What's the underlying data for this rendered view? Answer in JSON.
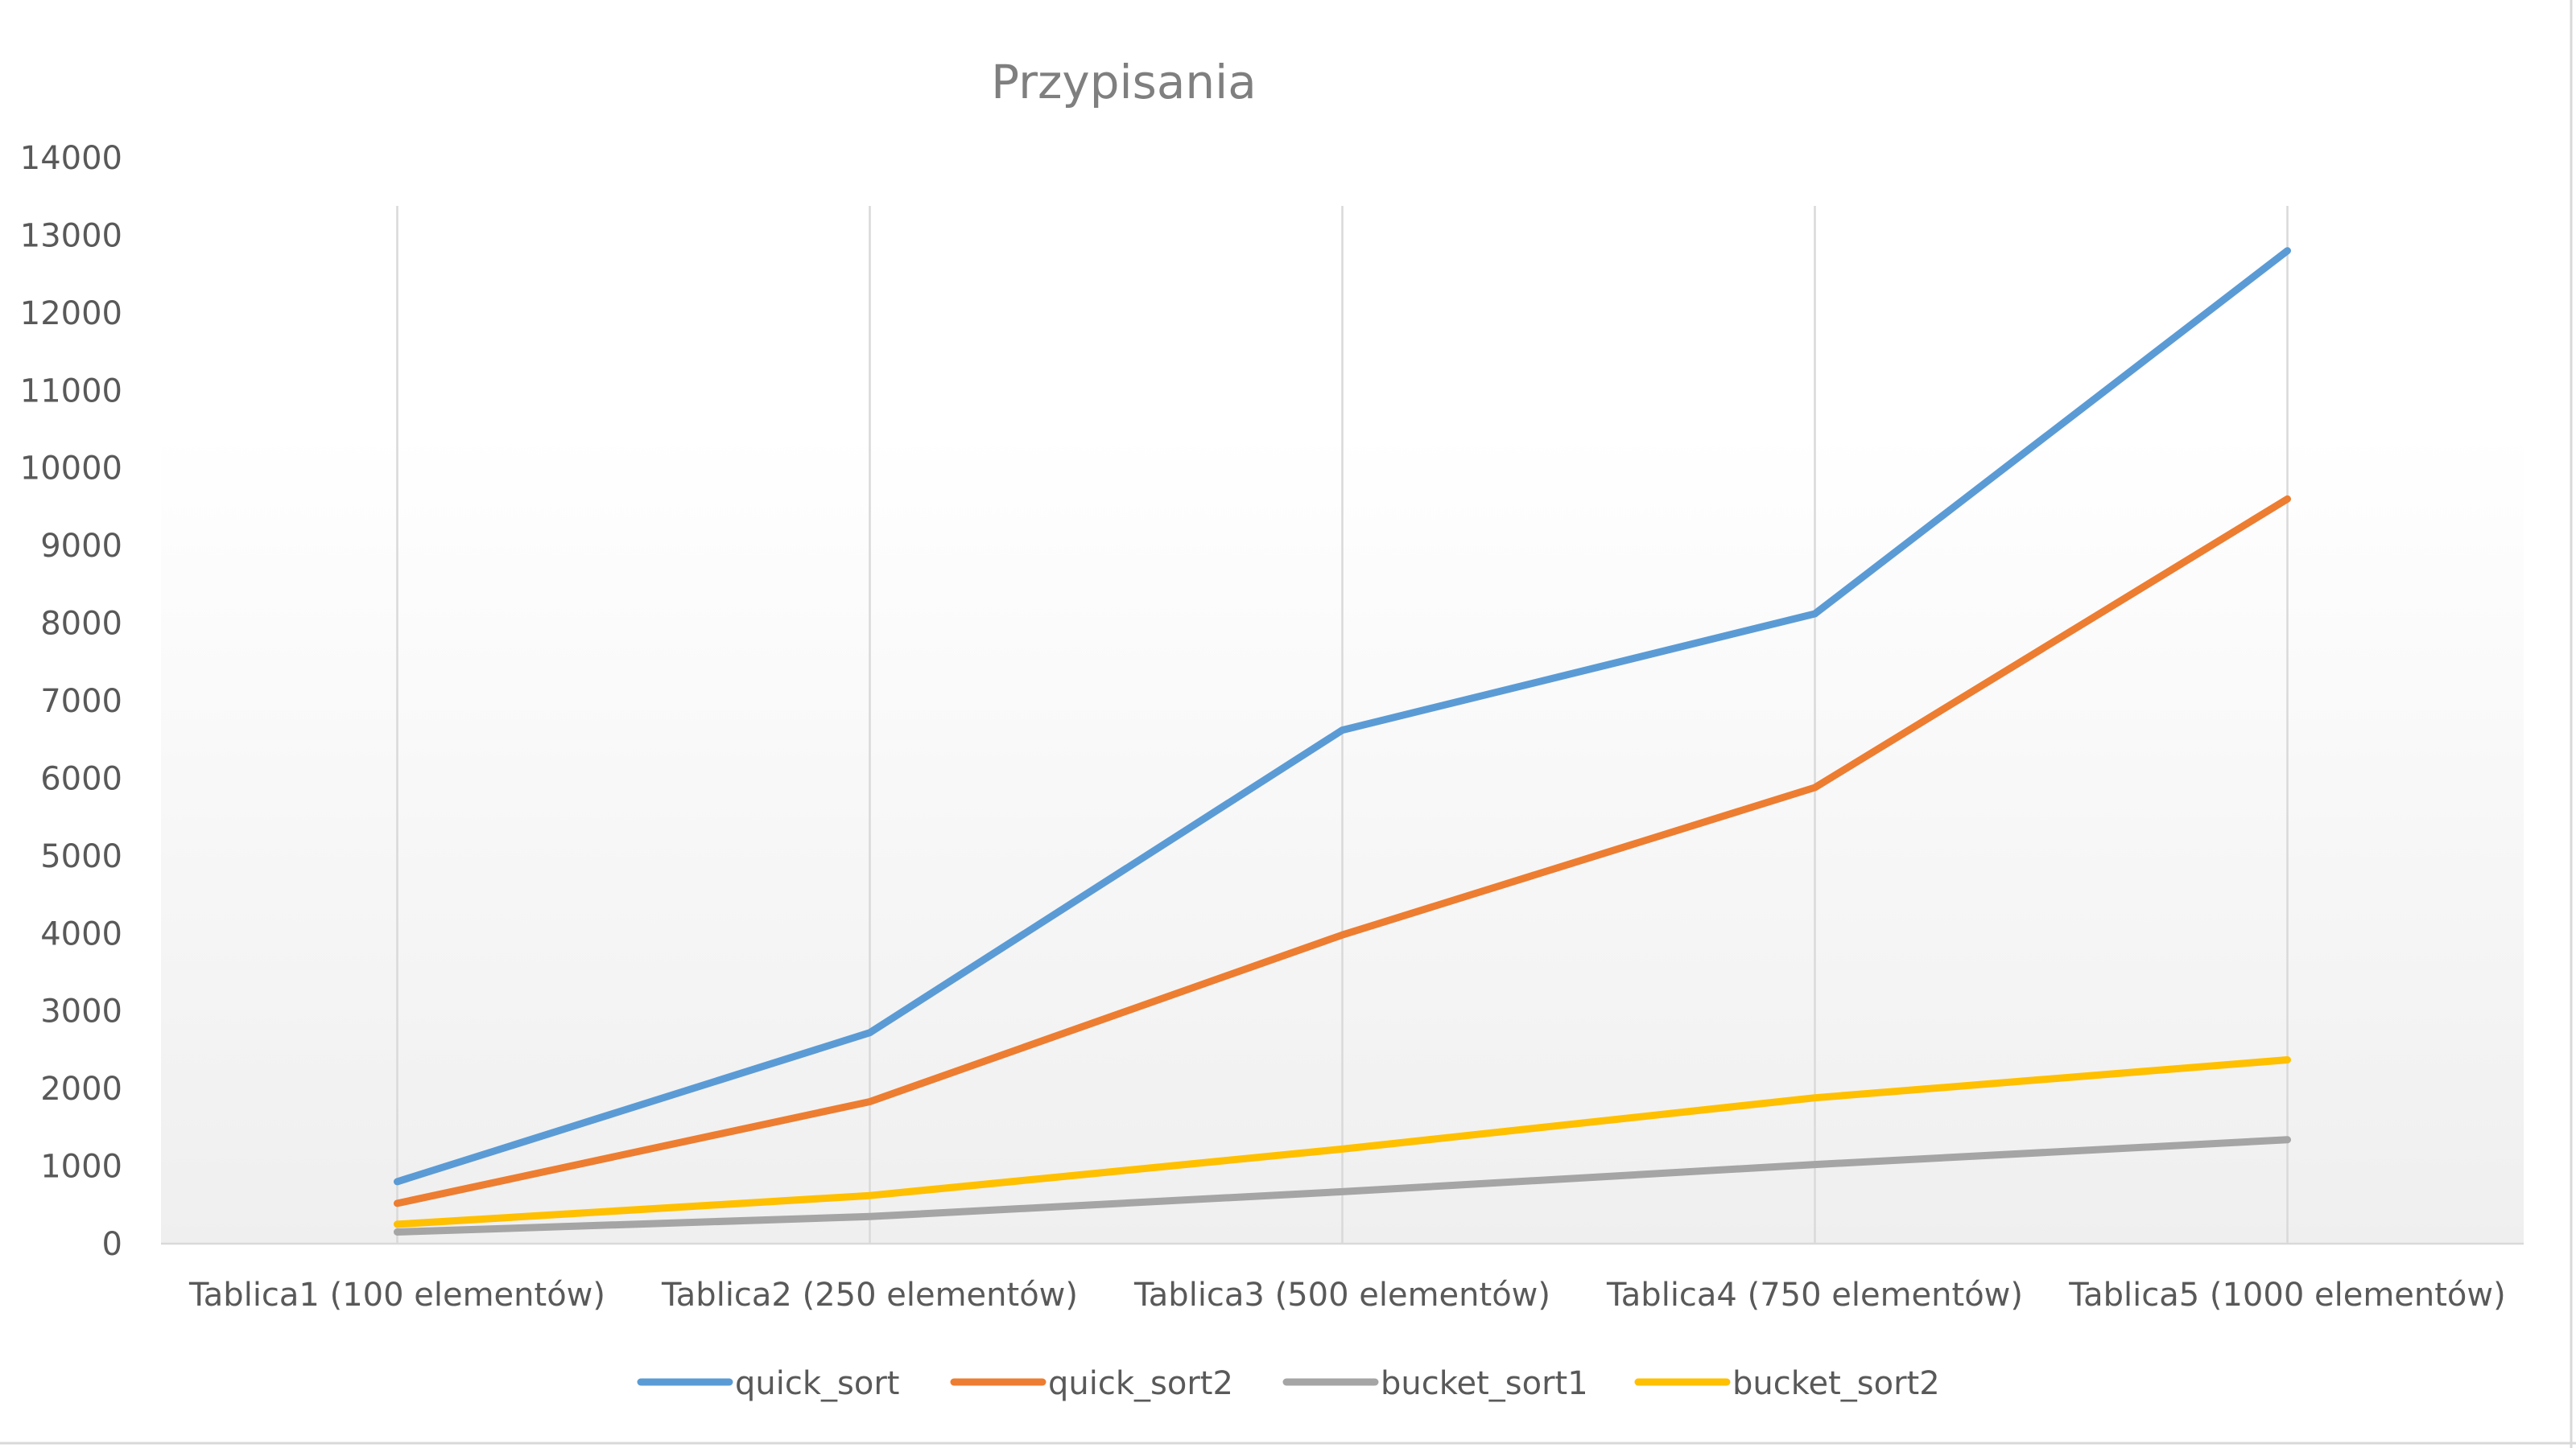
{
  "chart_data": {
    "type": "line",
    "title": "Przypisania",
    "xlabel": "",
    "ylabel": "",
    "categories": [
      "Tablica1 (100 elementów)",
      "Tablica2 (250 elementów)",
      "Tablica3 (500 elementów)",
      "Tablica4 (750 elementów)",
      "Tablica5 (1000 elementów)"
    ],
    "ylim": [
      0,
      14000
    ],
    "yticks": [
      "0",
      "1000",
      "2000",
      "3000",
      "4000",
      "5000",
      "6000",
      "7000",
      "8000",
      "9000",
      "10000",
      "11000",
      "12000",
      "13000",
      "14000"
    ],
    "grid": "vertical lines at categories",
    "legend_position": "bottom",
    "series": [
      {
        "name": "quick_sort",
        "color": "#5b9bd5",
        "values": [
          800,
          2720,
          6620,
          8120,
          12800
        ]
      },
      {
        "name": "quick_sort2",
        "color": "#ed7d31",
        "values": [
          520,
          1830,
          3980,
          5880,
          9600
        ]
      },
      {
        "name": "bucket_sort1",
        "color": "#a5a5a5",
        "values": [
          150,
          350,
          670,
          1020,
          1340
        ]
      },
      {
        "name": "bucket_sort2",
        "color": "#ffc000",
        "values": [
          250,
          620,
          1220,
          1880,
          2370
        ]
      }
    ]
  }
}
